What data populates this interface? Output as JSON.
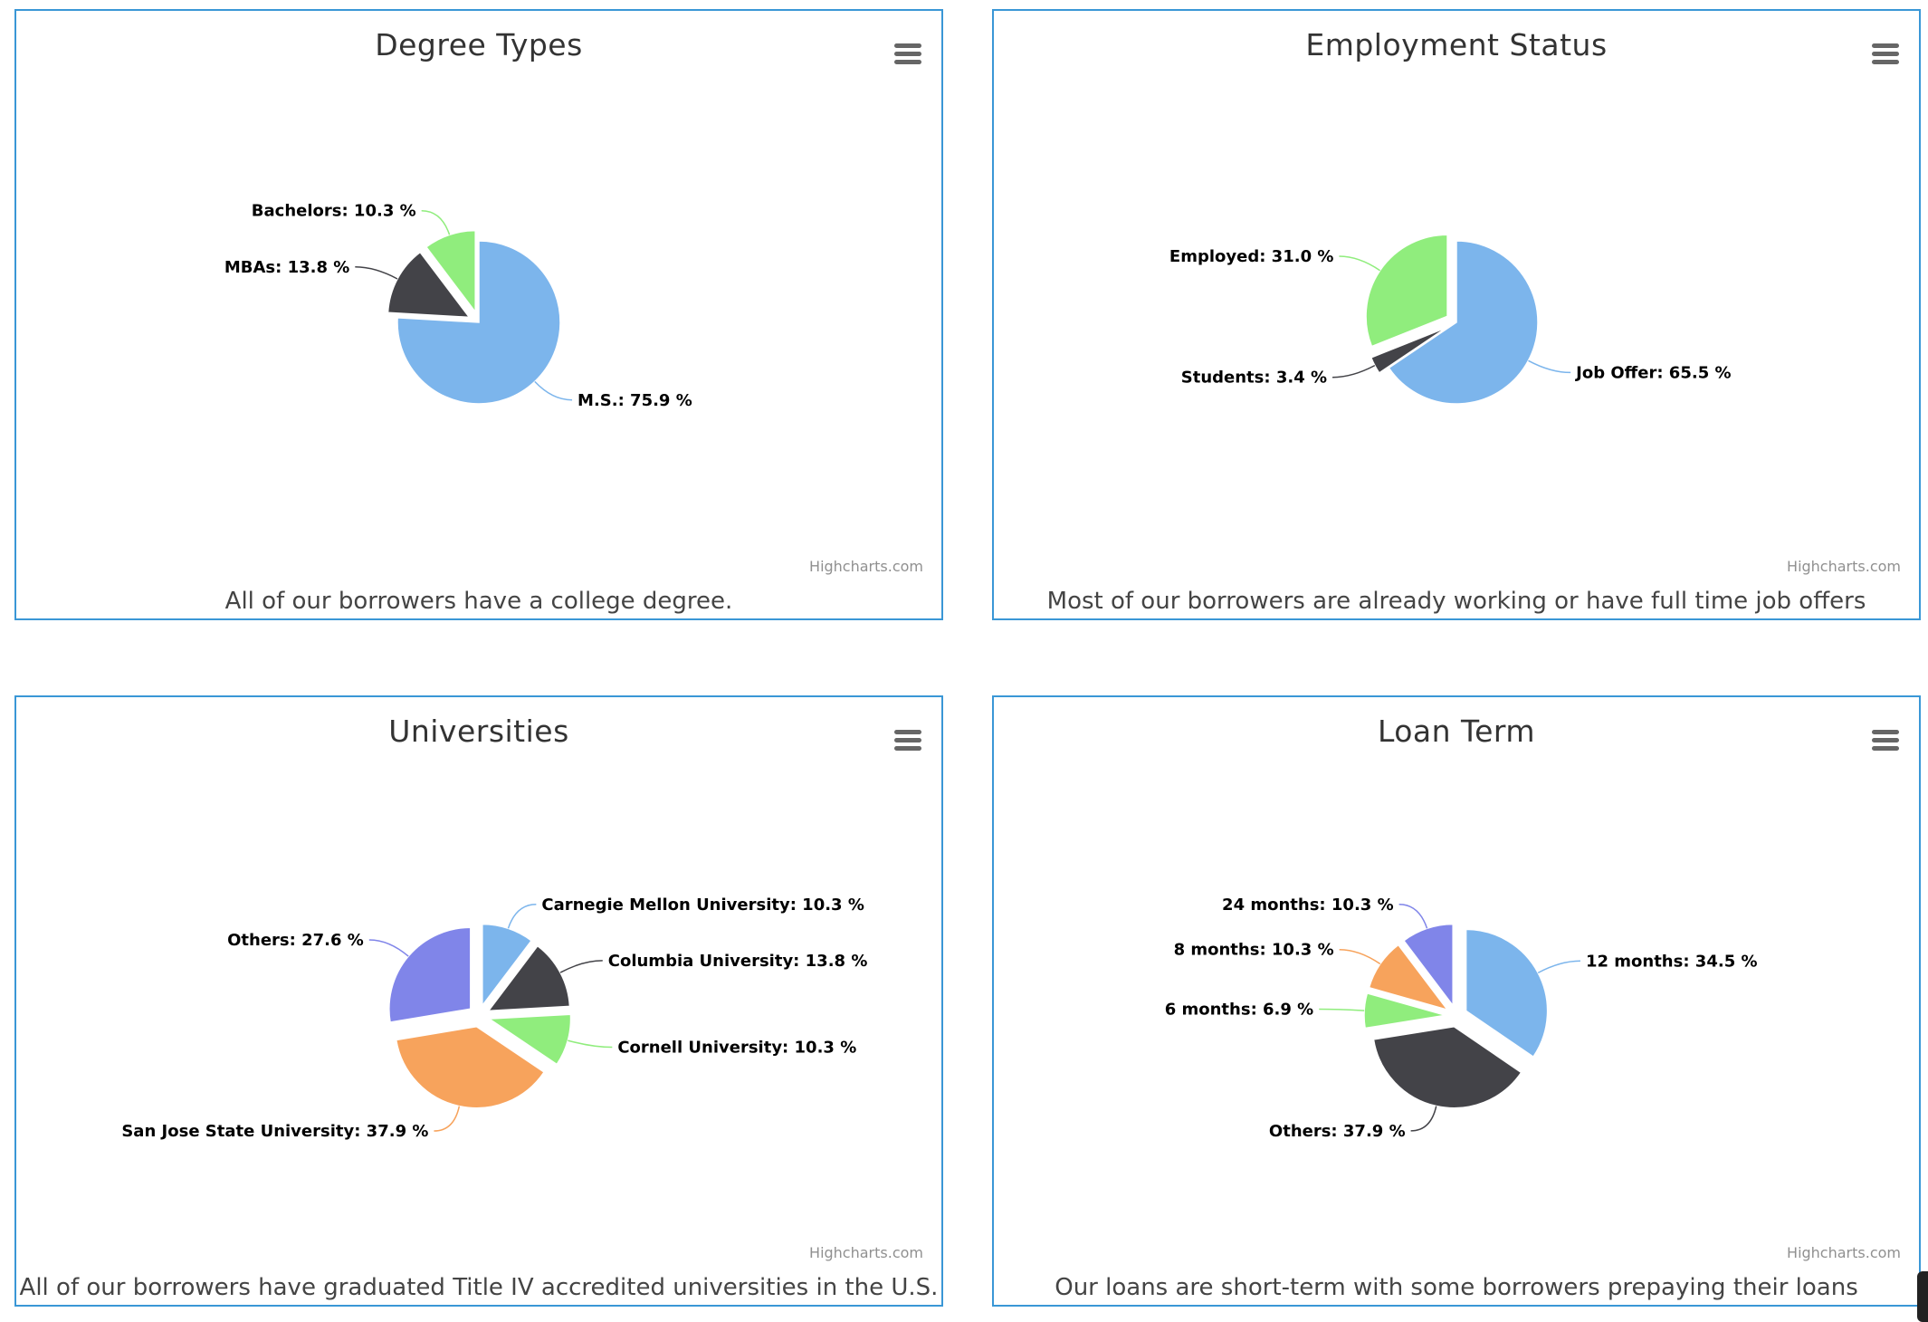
{
  "cards": [
    {
      "title": "Degree Types",
      "caption": "All of our borrowers have a college degree.",
      "credits": "Highcharts.com"
    },
    {
      "title": "Employment Status",
      "caption": "Most of our borrowers are already working or have full time job offers",
      "credits": "Highcharts.com"
    },
    {
      "title": "Universities",
      "caption": "All of our borrowers have graduated Title IV accredited universities in the U.S.",
      "credits": "Highcharts.com"
    },
    {
      "title": "Loan Term",
      "caption": "Our loans are short-term with some borrowers prepaying their loans",
      "credits": "Highcharts.com"
    }
  ],
  "chart_data": [
    {
      "type": "pie",
      "title": "Degree Types",
      "subtitle": "All of our borrowers have a college degree.",
      "unit": "%",
      "slices": [
        {
          "name": "M.S.",
          "value": 75.9,
          "color": "#7cb5ec",
          "sliced": false
        },
        {
          "name": "MBAs",
          "value": 13.8,
          "color": "#434348",
          "sliced": true
        },
        {
          "name": "Bachelors",
          "value": 10.3,
          "color": "#90ed7d",
          "sliced": true
        }
      ]
    },
    {
      "type": "pie",
      "title": "Employment Status",
      "subtitle": "Most of our borrowers are already working or have full time job offers",
      "unit": "%",
      "slices": [
        {
          "name": "Job Offer",
          "value": 65.5,
          "color": "#7cb5ec",
          "sliced": false
        },
        {
          "name": "Students",
          "value": 3.4,
          "color": "#434348",
          "sliced": true
        },
        {
          "name": "Employed",
          "value": 31.0,
          "color": "#90ed7d",
          "sliced": true
        }
      ]
    },
    {
      "type": "pie",
      "title": "Universities",
      "subtitle": "All of our borrowers have graduated Title IV accredited universities in the U.S.",
      "unit": "%",
      "slices": [
        {
          "name": "Carnegie Mellon University",
          "value": 10.3,
          "color": "#7cb5ec",
          "sliced": true
        },
        {
          "name": "Columbia University",
          "value": 13.8,
          "color": "#434348",
          "sliced": true
        },
        {
          "name": "Cornell University",
          "value": 10.3,
          "color": "#90ed7d",
          "sliced": true
        },
        {
          "name": "San Jose State University",
          "value": 37.9,
          "color": "#f7a35c",
          "sliced": true
        },
        {
          "name": "Others",
          "value": 27.6,
          "color": "#8085e9",
          "sliced": true
        }
      ]
    },
    {
      "type": "pie",
      "title": "Loan Term",
      "subtitle": "Our loans are short-term with some borrowers prepaying their loans",
      "unit": "%",
      "slices": [
        {
          "name": "12 months",
          "value": 34.5,
          "color": "#7cb5ec",
          "sliced": true
        },
        {
          "name": "Others",
          "value": 37.9,
          "color": "#434348",
          "sliced": true
        },
        {
          "name": "6 months",
          "value": 6.9,
          "color": "#90ed7d",
          "sliced": true
        },
        {
          "name": "8 months",
          "value": 10.3,
          "color": "#f7a35c",
          "sliced": true
        },
        {
          "name": "24 months",
          "value": 10.3,
          "color": "#8085e9",
          "sliced": true
        }
      ]
    }
  ]
}
